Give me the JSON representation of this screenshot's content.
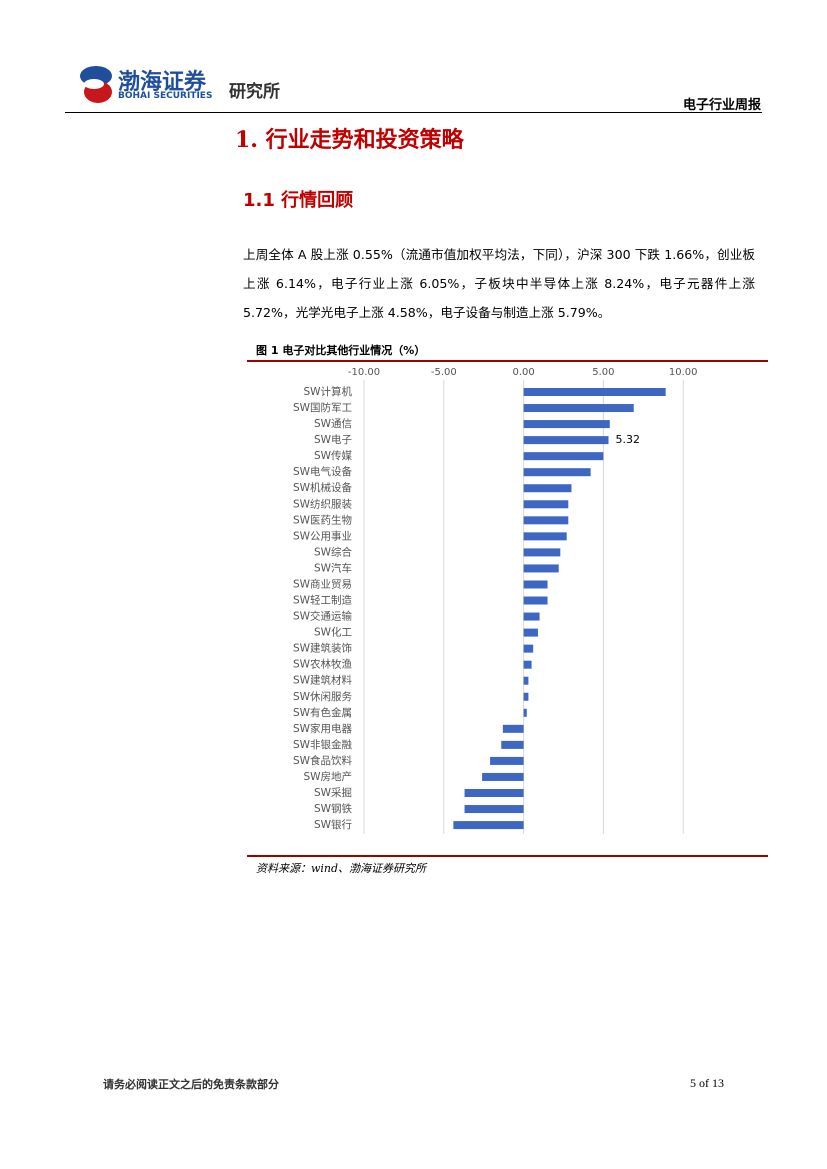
{
  "header": {
    "logo_cn": "渤海证券",
    "logo_en": "BOHAI SECURITIES",
    "institute": "研究所",
    "report_type": "电子行业周报"
  },
  "heading": "1. 行业走势和投资策略",
  "subheading": "1.1 行情回顾",
  "paragraph": "上周全体 A 股上涨 0.55%（流通市值加权平均法，下同），沪深 300 下跌 1.66%，创业板上涨 6.14%，电子行业上涨 6.05%，子板块中半导体上涨 8.24%，电子元器件上涨 5.72%，光学光电子上涨 4.58%，电子设备与制造上涨 5.79%。",
  "figure": {
    "caption": "图 1 电子对比其他行业情况（%）",
    "source": "资料来源：wind、渤海证券研究所"
  },
  "chart_data": {
    "type": "bar",
    "orientation": "horizontal",
    "categories": [
      "SW计算机",
      "SW国防军工",
      "SW通信",
      "SW电子",
      "SW传媒",
      "SW电气设备",
      "SW机械设备",
      "SW纺织服装",
      "SW医药生物",
      "SW公用事业",
      "SW综合",
      "SW汽车",
      "SW商业贸易",
      "SW轻工制造",
      "SW交通运输",
      "SW化工",
      "SW建筑装饰",
      "SW农林牧渔",
      "SW建筑材料",
      "SW休闲服务",
      "SW有色金属",
      "SW家用电器",
      "SW非银金融",
      "SW食品饮料",
      "SW房地产",
      "SW采掘",
      "SW钢铁",
      "SW银行"
    ],
    "values": [
      8.9,
      6.9,
      5.4,
      5.32,
      5.0,
      4.2,
      3.0,
      2.8,
      2.8,
      2.7,
      2.3,
      2.2,
      1.5,
      1.5,
      1.0,
      0.9,
      0.6,
      0.5,
      0.3,
      0.3,
      0.2,
      -1.3,
      -1.4,
      -2.1,
      -2.6,
      -3.7,
      -3.7,
      -4.4
    ],
    "value_labels": [
      null,
      null,
      null,
      "5.32",
      null,
      null,
      null,
      null,
      null,
      null,
      null,
      null,
      null,
      null,
      null,
      null,
      null,
      null,
      null,
      null,
      null,
      null,
      null,
      null,
      null,
      null,
      null,
      null
    ],
    "color": "#3d67c2",
    "xlim": [
      -10,
      15
    ],
    "xticks": [
      {
        "value": -10,
        "label": "-10.00"
      },
      {
        "value": -5,
        "label": "-5.00"
      },
      {
        "value": 0,
        "label": "0.00"
      },
      {
        "value": 5,
        "label": "5.00"
      },
      {
        "value": 10,
        "label": "10.00"
      }
    ],
    "grid": true
  },
  "footer": {
    "disclaimer": "请务必阅读正文之后的免责条款部分",
    "page": "5 of 13"
  }
}
